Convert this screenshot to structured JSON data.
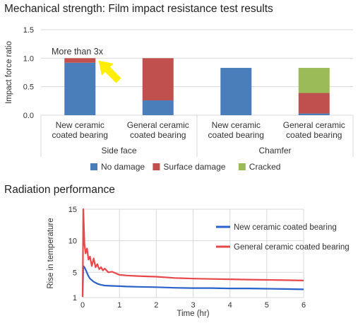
{
  "charts": {
    "impact": {
      "title": "Mechanical strength: Film impact resistance test results"
    },
    "radiation": {
      "title": "Radiation performance"
    }
  },
  "chart_data": [
    {
      "type": "bar",
      "stacked": true,
      "title": "Mechanical strength: Film impact resistance test results",
      "ylabel": "Impact force ratio",
      "ylim": [
        0,
        1.5
      ],
      "yticks": [
        "0.0",
        "0.5",
        "1.0",
        "1.5"
      ],
      "grid": true,
      "legend_position": "bottom",
      "groups": [
        "Side face",
        "Chamfer"
      ],
      "categories": [
        {
          "label_lines": [
            "New ceramic",
            "coated bearing"
          ],
          "group": "Side face"
        },
        {
          "label_lines": [
            "General ceramic",
            "coated bearing"
          ],
          "group": "Side face"
        },
        {
          "label_lines": [
            "New ceramic",
            "coated bearing"
          ],
          "group": "Chamfer"
        },
        {
          "label_lines": [
            "General ceramic",
            "coated bearing"
          ],
          "group": "Chamfer"
        }
      ],
      "series": [
        {
          "name": "No damage",
          "color": "#4a7ebb",
          "values": [
            0.92,
            0.26,
            0.83,
            0.03
          ]
        },
        {
          "name": "Surface damage",
          "color": "#c0504d",
          "values": [
            0.08,
            0.74,
            0,
            0.36
          ]
        },
        {
          "name": "Cracked",
          "color": "#9bbb59",
          "values": [
            0,
            0,
            0,
            0.44
          ]
        }
      ],
      "annotation": {
        "text": "More than 3x",
        "arrow_color": "#ffee00",
        "icon": "arrow-icon"
      }
    },
    {
      "type": "line",
      "title": "Radiation performance",
      "xlabel": "Time (hr)",
      "ylabel": "Rise in temperature",
      "xlim": [
        0,
        6
      ],
      "ylim": [
        1,
        15
      ],
      "xticks": [
        "0",
        "1",
        "2",
        "3",
        "4",
        "5",
        "6"
      ],
      "yticks": [
        "1",
        "5",
        "10",
        "15"
      ],
      "grid": true,
      "legend_position": "top-right",
      "series": [
        {
          "name": "New ceramic coated bearing",
          "color": "#2a62c9",
          "x": [
            0,
            0.02,
            0.05,
            0.1,
            0.15,
            0.2,
            0.3,
            0.4,
            0.5,
            0.6,
            0.8,
            1.0,
            1.2,
            1.5,
            2.0,
            2.5,
            3.0,
            3.5,
            4.0,
            4.5,
            5.0,
            5.5,
            6.0
          ],
          "y": [
            1.1,
            6.0,
            5.8,
            5.2,
            4.5,
            4.0,
            3.5,
            3.2,
            3.0,
            2.9,
            2.85,
            2.8,
            2.75,
            2.7,
            2.65,
            2.55,
            2.5,
            2.5,
            2.45,
            2.45,
            2.4,
            2.35,
            2.3
          ]
        },
        {
          "name": "General ceramic coated bearing",
          "color": "#e8484b",
          "x": [
            0,
            0.02,
            0.05,
            0.08,
            0.12,
            0.16,
            0.2,
            0.25,
            0.3,
            0.35,
            0.4,
            0.45,
            0.5,
            0.55,
            0.6,
            0.7,
            0.8,
            1.0,
            1.2,
            1.5,
            2.0,
            2.5,
            3.0,
            3.5,
            4.0,
            4.5,
            5.0,
            5.5,
            6.0
          ],
          "y": [
            1.1,
            15.0,
            9.5,
            8.0,
            8.8,
            7.0,
            7.5,
            6.0,
            7.2,
            5.8,
            6.3,
            5.5,
            5.8,
            5.3,
            5.6,
            5.0,
            5.1,
            4.6,
            4.5,
            4.4,
            4.3,
            4.1,
            4.0,
            3.95,
            3.9,
            3.85,
            3.8,
            3.75,
            3.7
          ]
        }
      ]
    }
  ]
}
